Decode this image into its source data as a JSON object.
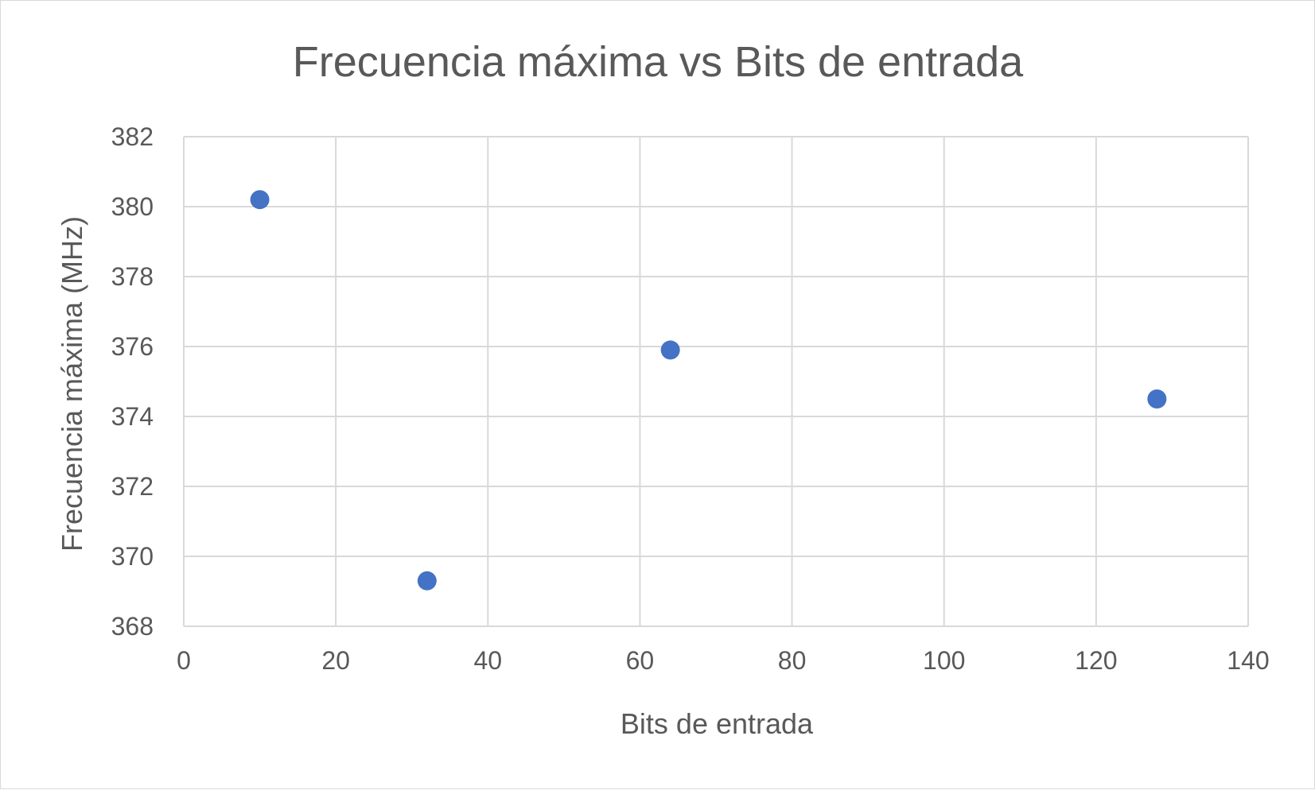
{
  "chart_data": {
    "type": "scatter",
    "title": "Frecuencia máxima vs Bits de entrada",
    "xlabel": "Bits de entrada",
    "ylabel": "Frecuencia máxima (MHz)",
    "xlim": [
      0,
      140
    ],
    "ylim": [
      368,
      382
    ],
    "xticks": [
      0,
      20,
      40,
      60,
      80,
      100,
      120,
      140
    ],
    "yticks": [
      368,
      370,
      372,
      374,
      376,
      378,
      380,
      382
    ],
    "grid": true,
    "legend": "none",
    "marker_color": "#4472c4",
    "series": [
      {
        "points": [
          {
            "x": 10,
            "y": 380.2
          },
          {
            "x": 32,
            "y": 369.3
          },
          {
            "x": 64,
            "y": 375.9
          },
          {
            "x": 128,
            "y": 374.5
          }
        ]
      }
    ]
  }
}
